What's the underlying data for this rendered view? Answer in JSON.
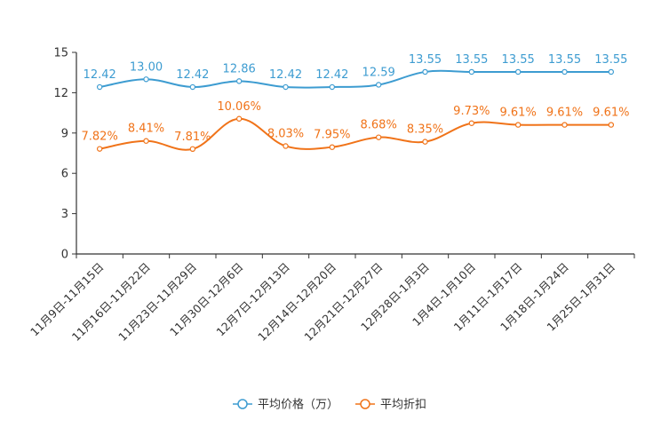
{
  "chart_data": {
    "type": "line",
    "title": "",
    "xlabel": "",
    "ylabel": "",
    "ylim": [
      0,
      15
    ],
    "yticks": [
      0,
      3,
      6,
      9,
      12,
      15
    ],
    "grid": false,
    "legend_position": "bottom-center",
    "categories": [
      "11月9日-11月15日",
      "11月16日-11月22日",
      "11月23日-11月29日",
      "11月30日-12月6日",
      "12月7日-12月13日",
      "12月14日-12月20日",
      "12月21日-12月27日",
      "12月28日-1月3日",
      "1月4日-1月10日",
      "1月11日-1月17日",
      "1月18日-1月24日",
      "1月25日-1月31日"
    ],
    "series": [
      {
        "name": "平均价格（万）",
        "color": "#3d9cd1",
        "values": [
          12.42,
          13.0,
          12.42,
          12.86,
          12.42,
          12.42,
          12.59,
          13.55,
          13.55,
          13.55,
          13.55,
          13.55
        ],
        "labels": [
          "12.42",
          "13.00",
          "12.42",
          "12.86",
          "12.42",
          "12.42",
          "12.59",
          "13.55",
          "13.55",
          "13.55",
          "13.55",
          "13.55"
        ]
      },
      {
        "name": "平均折扣",
        "color": "#f07319",
        "values": [
          7.82,
          8.41,
          7.81,
          10.06,
          8.03,
          7.95,
          8.68,
          8.35,
          9.73,
          9.61,
          9.61,
          9.61
        ],
        "labels": [
          "7.82%",
          "8.41%",
          "7.81%",
          "10.06%",
          "8.03%",
          "7.95%",
          "8.68%",
          "8.35%",
          "9.73%",
          "9.61%",
          "9.61%",
          "9.61%"
        ]
      }
    ]
  }
}
